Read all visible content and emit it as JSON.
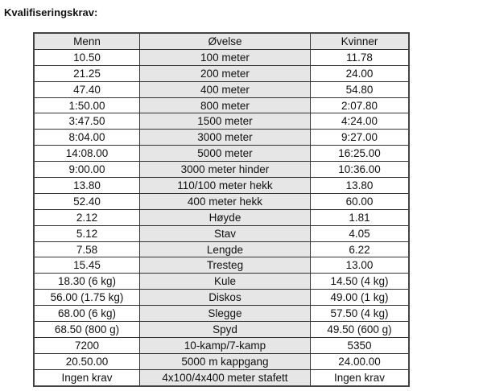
{
  "title": "Kvalifiseringskrav:",
  "table": {
    "headers": [
      "Menn",
      "Øvelse",
      "Kvinner"
    ],
    "rows": [
      [
        "10.50",
        "100 meter",
        "11.78"
      ],
      [
        "21.25",
        "200 meter",
        "24.00"
      ],
      [
        "47.40",
        "400 meter",
        "54.80"
      ],
      [
        "1:50.00",
        "800 meter",
        "2:07.80"
      ],
      [
        "3:47.50",
        "1500 meter",
        "4:24.00"
      ],
      [
        "8:04.00",
        "3000 meter",
        "9:27.00"
      ],
      [
        "14:08.00",
        "5000 meter",
        "16:25.00"
      ],
      [
        "9:00.00",
        "3000 meter hinder",
        "10:36.00"
      ],
      [
        "13.80",
        "110/100 meter hekk",
        "13.80"
      ],
      [
        "52.40",
        "400 meter hekk",
        "60.00"
      ],
      [
        "2.12",
        "Høyde",
        "1.81"
      ],
      [
        "5.12",
        "Stav",
        "4.05"
      ],
      [
        "7.58",
        "Lengde",
        "6.22"
      ],
      [
        "15.45",
        "Tresteg",
        "13.00"
      ],
      [
        "18.30 (6 kg)",
        "Kule",
        "14.50 (4 kg)"
      ],
      [
        "56.00 (1.75 kg)",
        "Diskos",
        "49.00 (1 kg)"
      ],
      [
        "68.00 (6 kg)",
        "Slegge",
        "57.50 (4 kg)"
      ],
      [
        "68.50 (800 g)",
        "Spyd",
        "49.50 (600 g)"
      ],
      [
        "7200",
        "10-kamp/7-kamp",
        "5350"
      ],
      [
        "20.50.00",
        "5000 m kappgang",
        "24.00.00"
      ],
      [
        "Ingen krav",
        "4x100/4x400 meter stafett",
        "Ingen krav"
      ]
    ]
  }
}
